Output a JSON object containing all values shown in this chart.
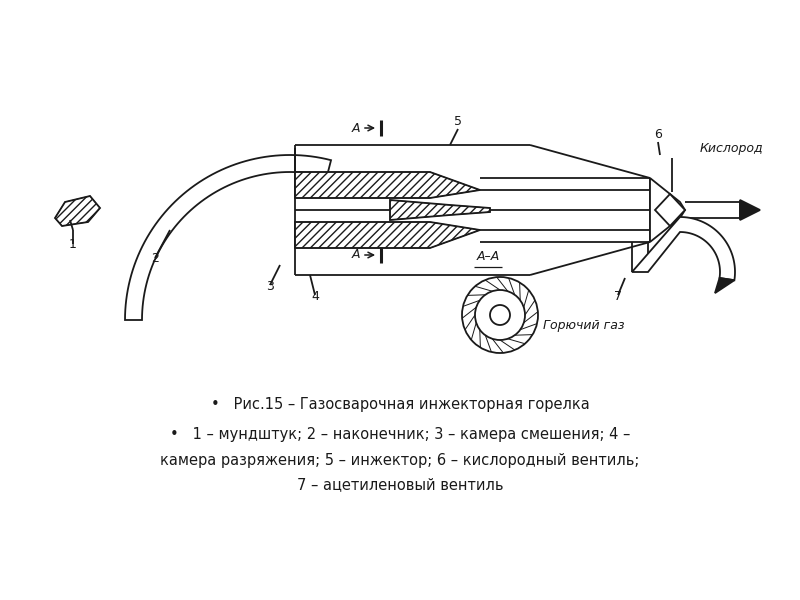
{
  "bg_color": "#ffffff",
  "line_color": "#1a1a1a",
  "title1": "•   Рис.15 – Газосварочная инжекторная горелка",
  "title2": "•   1 – мундштук; 2 – наконечник; 3 – камера смешения; 4 –",
  "title3": "камера разряжения; 5 – инжектор; 6 – кислородный вентиль;",
  "title4": "7 – ацетиленовый вентиль",
  "label_AA": "A–A",
  "label_kislород": "Кислород",
  "label_gorgaz": "Горючий газ",
  "label_1": "1",
  "label_2": "2",
  "label_3": "3",
  "label_4": "4",
  "label_5": "5",
  "label_6": "6",
  "label_7": "7"
}
